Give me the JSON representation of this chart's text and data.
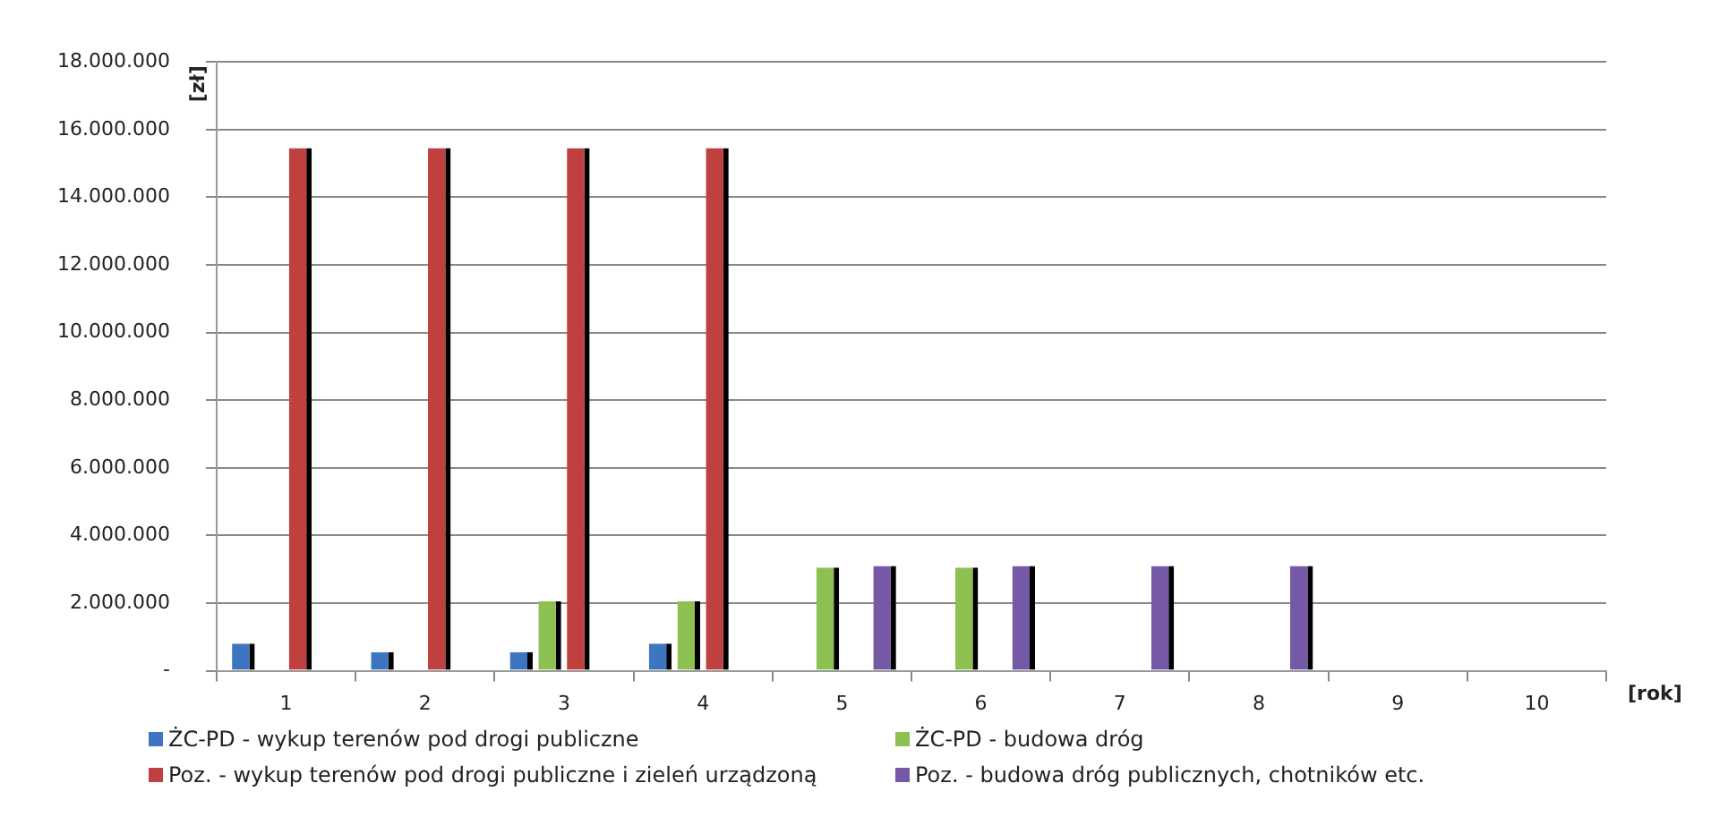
{
  "chart_data": {
    "type": "bar",
    "ylabel": "[zł]",
    "xlabel": "[rok]",
    "categories": [
      "1",
      "2",
      "3",
      "4",
      "5",
      "6",
      "7",
      "8",
      "9",
      "10"
    ],
    "series": [
      {
        "name": "ŻC-PD - wykup terenów pod drogi publiczne",
        "color": "#3d75c0",
        "values": [
          800000,
          550000,
          550000,
          800000,
          null,
          null,
          null,
          null,
          null,
          null
        ]
      },
      {
        "name": "ŻC-PD - budowa dróg",
        "color": "#8cc152",
        "values": [
          null,
          null,
          2050000,
          2050000,
          3050000,
          3050000,
          null,
          null,
          null,
          null
        ]
      },
      {
        "name": "Poz. - wykup terenów pod drogi publiczne i zieleń urządzoną",
        "color": "#c0403f",
        "values": [
          15450000,
          15450000,
          15450000,
          15450000,
          null,
          null,
          null,
          null,
          null,
          null
        ]
      },
      {
        "name": "Poz. - budowa dróg publicznych, chotników etc.",
        "color": "#7558a6",
        "values": [
          null,
          null,
          null,
          null,
          3100000,
          3100000,
          3100000,
          3100000,
          null,
          null
        ]
      }
    ],
    "ylim": [
      0,
      18000000
    ],
    "yticks": [
      {
        "value": 0,
        "label": "-"
      },
      {
        "value": 2000000,
        "label": "2.000.000"
      },
      {
        "value": 4000000,
        "label": "4.000.000"
      },
      {
        "value": 6000000,
        "label": "6.000.000"
      },
      {
        "value": 8000000,
        "label": "8.000.000"
      },
      {
        "value": 10000000,
        "label": "10.000.000"
      },
      {
        "value": 12000000,
        "label": "12.000.000"
      },
      {
        "value": 14000000,
        "label": "14.000.000"
      },
      {
        "value": 16000000,
        "label": "16.000.000"
      },
      {
        "value": 18000000,
        "label": "18.000.000"
      }
    ],
    "grid": "y",
    "legend": "bottom"
  }
}
